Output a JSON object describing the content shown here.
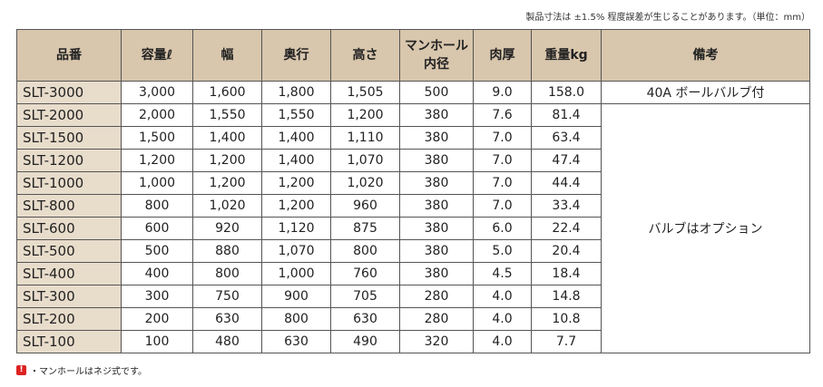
{
  "note": "製品寸法は ±1.5% 程度誤差が生じることがあります。（単位：mm）",
  "table": {
    "headers": [
      "品番",
      "容量ℓ",
      "幅",
      "奥行",
      "高さ",
      [
        "マンホール",
        "内径"
      ],
      "肉厚",
      "重量kg",
      "備考"
    ],
    "rows": [
      [
        "SLT-3000",
        "3,000",
        "1,600",
        "1,800",
        "1,505",
        "500",
        "9.0",
        "158.0"
      ],
      [
        "SLT-2000",
        "2,000",
        "1,550",
        "1,550",
        "1,200",
        "380",
        "7.6",
        "81.4"
      ],
      [
        "SLT-1500",
        "1,500",
        "1,400",
        "1,400",
        "1,110",
        "380",
        "7.0",
        "63.4"
      ],
      [
        "SLT-1200",
        "1,200",
        "1,200",
        "1,400",
        "1,070",
        "380",
        "7.0",
        "47.4"
      ],
      [
        "SLT-1000",
        "1,000",
        "1,200",
        "1,200",
        "1,020",
        "380",
        "7.0",
        "44.4"
      ],
      [
        "SLT-800",
        "800",
        "1,020",
        "1,200",
        "960",
        "380",
        "7.0",
        "33.4"
      ],
      [
        "SLT-600",
        "600",
        "920",
        "1,120",
        "875",
        "380",
        "6.0",
        "22.4"
      ],
      [
        "SLT-500",
        "500",
        "880",
        "1,070",
        "800",
        "380",
        "5.0",
        "20.4"
      ],
      [
        "SLT-400",
        "400",
        "800",
        "1,000",
        "760",
        "380",
        "4.5",
        "18.4"
      ],
      [
        "SLT-300",
        "300",
        "750",
        "900",
        "705",
        "280",
        "4.0",
        "14.8"
      ],
      [
        "SLT-200",
        "200",
        "630",
        "800",
        "630",
        "280",
        "4.0",
        "10.8"
      ],
      [
        "SLT-100",
        "100",
        "480",
        "630",
        "490",
        "320",
        "4.0",
        "7.7"
      ]
    ],
    "remarks": [
      "40A ボールバルブ付",
      "バルブはオプション"
    ]
  },
  "footnote": "・マンホールはネジ式です。"
}
